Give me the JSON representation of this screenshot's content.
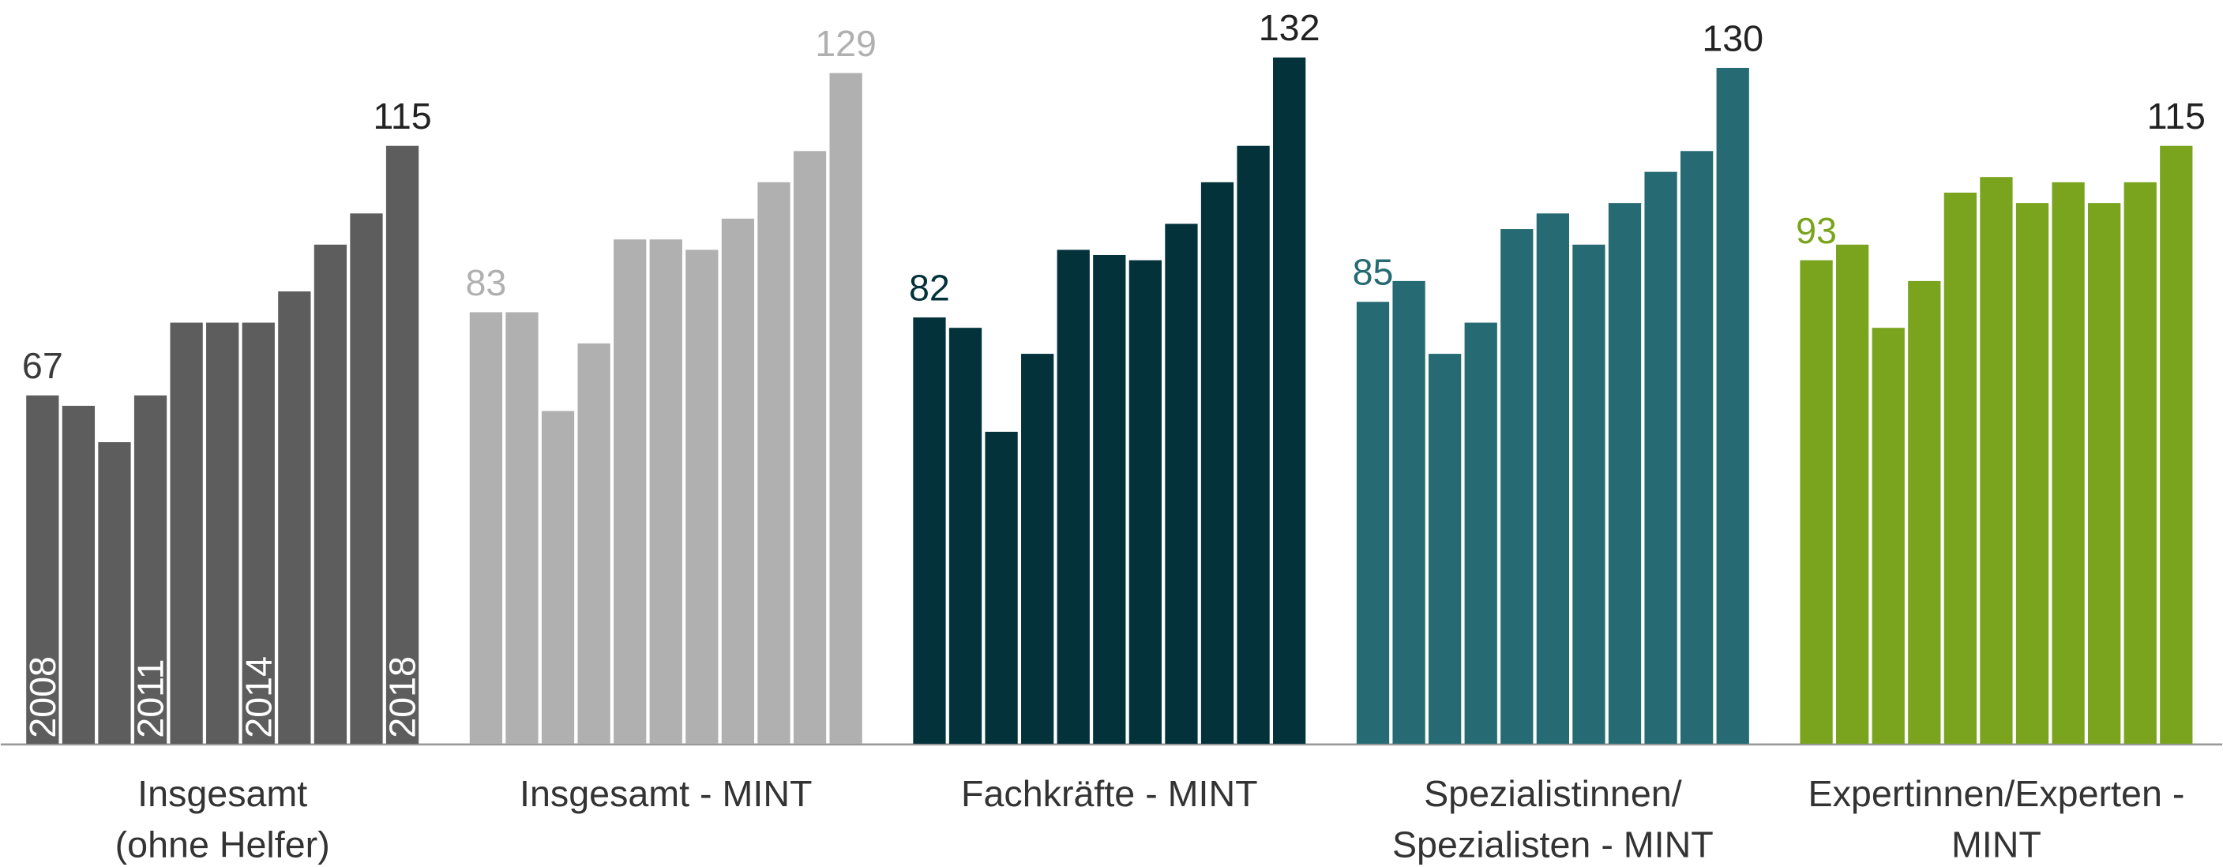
{
  "chart_data": {
    "type": "bar",
    "categories": [
      "2008",
      null,
      null,
      "2011",
      null,
      null,
      "2014",
      null,
      null,
      null,
      "2018"
    ],
    "ylim": [
      0,
      143
    ],
    "series": [
      {
        "name": "Insgesamt\n(ohne Helfer)",
        "color": "#5d5d5d",
        "values": [
          67,
          65,
          58,
          67,
          81,
          81,
          81,
          87,
          96,
          102,
          115
        ]
      },
      {
        "name": "Insgesamt - MINT",
        "color": "#b0b0b0",
        "values": [
          83,
          83,
          64,
          77,
          97,
          97,
          95,
          101,
          108,
          114,
          129
        ]
      },
      {
        "name": "Fachkräfte - MINT",
        "color": "#03323b",
        "values": [
          82,
          80,
          60,
          75,
          95,
          94,
          93,
          100,
          108,
          115,
          132
        ]
      },
      {
        "name": "Spezialistinnen/\nSpezialisten - MINT",
        "color": "#266b73",
        "values": [
          85,
          89,
          75,
          81,
          99,
          102,
          96,
          104,
          110,
          114,
          130
        ]
      },
      {
        "name": "Expertinnen/Experten -\nMINT",
        "color": "#7aa41d",
        "values": [
          93,
          96,
          80,
          89,
          106,
          109,
          104,
          108,
          104,
          108,
          115
        ]
      }
    ]
  }
}
